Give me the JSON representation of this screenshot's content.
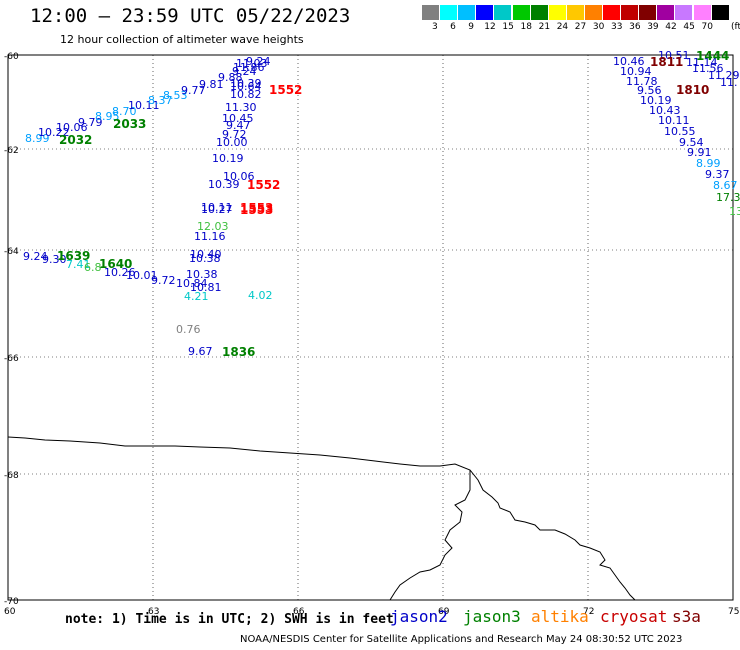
{
  "title": "12:00 — 23:59 UTC 05/22/2023",
  "subtitle": "12 hour collection of altimeter wave heights",
  "legend": {
    "colors": [
      "#808080",
      "#00ffff",
      "#00bfff",
      "#0000ff",
      "#00c8c8",
      "#00c800",
      "#008000",
      "#ffff00",
      "#ffc800",
      "#ff8000",
      "#ff0000",
      "#c00000",
      "#800000",
      "#a000a0",
      "#c878ff",
      "#ff80ff",
      "#000000"
    ],
    "ticks": [
      "3",
      "6",
      "9",
      "12",
      "15",
      "18",
      "21",
      "24",
      "27",
      "30",
      "33",
      "36",
      "39",
      "42",
      "45",
      "70"
    ],
    "unit": "(ft)"
  },
  "axes": {
    "lat_labels": [
      "-60",
      "-62",
      "-64",
      "-66",
      "-68",
      "-70"
    ],
    "lon_labels": [
      "60",
      "63",
      "66",
      "69",
      "72",
      "75"
    ]
  },
  "colors": {
    "jason2": "#0000c8",
    "jason3": "#008000",
    "altika": "#ff8000",
    "cryosat": "#c80000",
    "s3a": "#800000",
    "lightblue": "#00a0ff",
    "cyan": "#00c8c8",
    "gray": "#808080",
    "lightgreen": "#40c040",
    "red": "#ff0000"
  },
  "wave_labels": [
    {
      "t": "8.99",
      "c": "lightblue"
    },
    {
      "t": "10.22",
      "c": "jason2"
    },
    {
      "t": "10.06",
      "c": "jason2"
    },
    {
      "t": "9.79",
      "c": "jason2"
    },
    {
      "t": "8.95",
      "c": "lightblue"
    },
    {
      "t": "8.70",
      "c": "lightblue"
    },
    {
      "t": "10.11",
      "c": "jason2"
    },
    {
      "t": "8.37",
      "c": "lightblue"
    },
    {
      "t": "8.53",
      "c": "lightblue"
    },
    {
      "t": "9.77",
      "c": "jason2"
    },
    {
      "t": "9.81",
      "c": "jason2"
    },
    {
      "t": "9.88",
      "c": "jason2"
    },
    {
      "t": "9.24",
      "c": "jason2"
    },
    {
      "t": "11.03",
      "c": "jason2"
    },
    {
      "t": "11.86",
      "c": "jason2"
    },
    {
      "t": "9.24",
      "c": "jason2"
    },
    {
      "t": "10.39",
      "c": "jason2"
    },
    {
      "t": "10.64",
      "c": "jason2"
    },
    {
      "t": "10.82",
      "c": "jason2"
    },
    {
      "t": "11.30",
      "c": "jason2"
    },
    {
      "t": "10.45",
      "c": "jason2"
    },
    {
      "t": "9.47",
      "c": "jason2"
    },
    {
      "t": "9.72",
      "c": "jason2"
    },
    {
      "t": "10.00",
      "c": "jason2"
    },
    {
      "t": "10.19",
      "c": "jason2"
    },
    {
      "t": "10.06",
      "c": "jason2"
    },
    {
      "t": "10.39",
      "c": "jason2"
    },
    {
      "t": "10.11",
      "c": "jason2"
    },
    {
      "t": "10.27",
      "c": "jason2"
    },
    {
      "t": "12.03",
      "c": "lightgreen"
    },
    {
      "t": "11.16",
      "c": "jason2"
    },
    {
      "t": "10.40",
      "c": "jason2"
    },
    {
      "t": "10.38",
      "c": "jason2"
    },
    {
      "t": "10.38",
      "c": "jason2"
    },
    {
      "t": "10.84",
      "c": "jason2"
    },
    {
      "t": "10.81",
      "c": "jason2"
    },
    {
      "t": "4.21",
      "c": "cyan"
    },
    {
      "t": "4.02",
      "c": "cyan"
    },
    {
      "t": "0.76",
      "c": "gray"
    },
    {
      "t": "9.67",
      "c": "jason2"
    },
    {
      "t": "9.24",
      "c": "jason2"
    },
    {
      "t": "9.30",
      "c": "jason2"
    },
    {
      "t": "7.41",
      "c": "cyan"
    },
    {
      "t": "6.8",
      "c": "lightgreen"
    },
    {
      "t": "10.26",
      "c": "jason2"
    },
    {
      "t": "10.01",
      "c": "jason2"
    },
    {
      "t": "9.72",
      "c": "jason2"
    },
    {
      "t": "10.46",
      "c": "jason2"
    },
    {
      "t": "10.94",
      "c": "jason2"
    },
    {
      "t": "11.78",
      "c": "jason2"
    },
    {
      "t": "9.56",
      "c": "jason2"
    },
    {
      "t": "10.19",
      "c": "jason2"
    },
    {
      "t": "10.43",
      "c": "jason2"
    },
    {
      "t": "10.11",
      "c": "jason2"
    },
    {
      "t": "10.55",
      "c": "jason2"
    },
    {
      "t": "9.54",
      "c": "jason2"
    },
    {
      "t": "9.91",
      "c": "jason2"
    },
    {
      "t": "8.99",
      "c": "lightblue"
    },
    {
      "t": "9.37",
      "c": "jason2"
    },
    {
      "t": "8.67",
      "c": "lightblue"
    },
    {
      "t": "17.3",
      "c": "jason3"
    },
    {
      "t": "13",
      "c": "lightgreen"
    },
    {
      "t": "10.51",
      "c": "jason2"
    },
    {
      "t": "11.14",
      "c": "jason2"
    },
    {
      "t": "11.56",
      "c": "jason2"
    },
    {
      "t": "11.29",
      "c": "jason2"
    },
    {
      "t": "11.",
      "c": "jason2"
    }
  ],
  "time_labels": [
    {
      "t": "2032",
      "c": "jason3"
    },
    {
      "t": "2033",
      "c": "jason3"
    },
    {
      "t": "1552",
      "c": "red"
    },
    {
      "t": "1552",
      "c": "red"
    },
    {
      "t": "1553",
      "c": "red"
    },
    {
      "t": "1553",
      "c": "red"
    },
    {
      "t": "1639",
      "c": "jason3"
    },
    {
      "t": "1640",
      "c": "jason3"
    },
    {
      "t": "1836",
      "c": "jason3"
    },
    {
      "t": "1811",
      "c": "s3a"
    },
    {
      "t": "1810",
      "c": "s3a"
    },
    {
      "t": "1444",
      "c": "jason3"
    }
  ],
  "note": "note: 1) Time is in UTC; 2) SWH is in feet",
  "satellites": [
    {
      "name": "jason2",
      "c": "jason2"
    },
    {
      "name": "jason3",
      "c": "jason3"
    },
    {
      "name": "altika",
      "c": "altika"
    },
    {
      "name": "cryosat",
      "c": "cryosat"
    },
    {
      "name": "s3a",
      "c": "s3a"
    }
  ],
  "footer": "NOAA/NESDIS Center for Satellite Applications and Research    May 24 08:30:52 UTC 2023"
}
